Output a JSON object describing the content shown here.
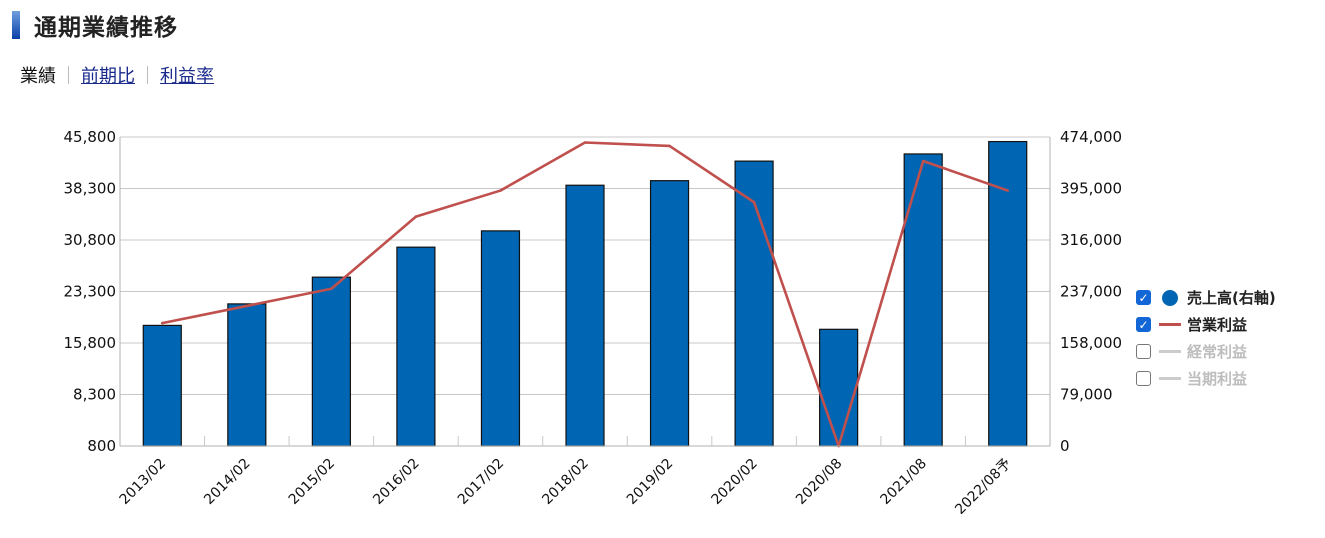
{
  "header": {
    "title": "通期業績推移"
  },
  "tabs": [
    {
      "label": "業績",
      "active": true
    },
    {
      "label": "前期比",
      "active": false
    },
    {
      "label": "利益率",
      "active": false
    }
  ],
  "legend": [
    {
      "label": "売上高(右軸)",
      "checked": true,
      "symbol": "dot",
      "color": "#0066b3"
    },
    {
      "label": "営業利益",
      "checked": true,
      "symbol": "line",
      "color": "#c0504d"
    },
    {
      "label": "経常利益",
      "checked": false,
      "symbol": "line",
      "color": "#cccccc"
    },
    {
      "label": "当期利益",
      "checked": false,
      "symbol": "line",
      "color": "#cccccc"
    }
  ],
  "chart_data": {
    "type": "bar",
    "categories": [
      "2013/02",
      "2014/02",
      "2015/02",
      "2016/02",
      "2017/02",
      "2018/02",
      "2019/02",
      "2020/02",
      "2020/08",
      "2021/08",
      "2022/08予"
    ],
    "left_axis": {
      "ticks": [
        "800",
        "8,300",
        "15,800",
        "23,300",
        "30,800",
        "38,300",
        "45,800"
      ],
      "min": 800,
      "max": 45800
    },
    "right_axis": {
      "ticks": [
        "0",
        "79,000",
        "158,000",
        "237,000",
        "316,000",
        "395,000",
        "474,000"
      ],
      "min": 0,
      "max": 474000
    },
    "series": [
      {
        "name": "売上高(右軸)",
        "type": "bar",
        "axis": "right",
        "color": "#0066b3",
        "values": [
          185000,
          218000,
          259000,
          305000,
          330000,
          400000,
          407000,
          437000,
          179000,
          448000,
          467000
        ]
      },
      {
        "name": "営業利益",
        "type": "line",
        "axis": "left",
        "color": "#c0504d",
        "values": [
          18700,
          21200,
          23700,
          34200,
          38000,
          45000,
          44500,
          36300,
          800,
          42300,
          38000
        ]
      }
    ],
    "grid": true,
    "legend_position": "right"
  }
}
